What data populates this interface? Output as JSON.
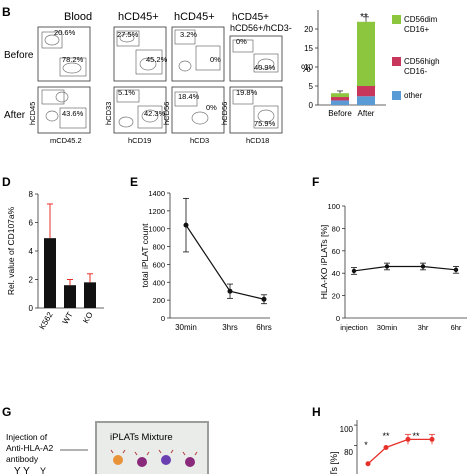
{
  "panels": {
    "B": {
      "letter": "B",
      "col_titles": [
        "Blood",
        "hCD45+",
        "hCD45+",
        "hCD45+",
        "hCD56+/hCD3-"
      ],
      "row_labels": [
        "Before",
        "After"
      ],
      "before_pcts": [
        "20.6%",
        "78.2%",
        "27.5%",
        "45.2%",
        "3.2%",
        "0%",
        "0%",
        "40.9%"
      ],
      "after_pcts": [
        "43.6%",
        "5.1%",
        "42.3%",
        "18.4%",
        "0%",
        "19.8%",
        "75.9%"
      ],
      "y_axis_labels": [
        "hCD45",
        "hCD33",
        "hCD56",
        "hCD56"
      ],
      "x_axis_labels": [
        "mCD45.2",
        "hCD19",
        "hCD3",
        "hCD18"
      ],
      "bar_ylabel": "%",
      "bar_significance": "**",
      "legend": [
        "CD56dim CD16+",
        "CD56high CD16-",
        "other"
      ]
    },
    "D": {
      "letter": "D"
    },
    "E": {
      "letter": "E"
    },
    "F": {
      "letter": "F"
    },
    "G": {
      "letter": "G",
      "text_lines": [
        "Injection of",
        "Anti-HLA-A2",
        "antibody"
      ],
      "box_label": "iPLATs Mixture"
    },
    "H": {
      "letter": "H",
      "ylabel_partial": "Ts [%]",
      "yticks": [
        "100",
        "80"
      ],
      "significance": [
        "*",
        "**",
        "**"
      ]
    }
  },
  "colors": {
    "cd56dim": "#8cc63f",
    "cd56high": "#c8365b",
    "other": "#5b9bd5",
    "h_line": "#e8302a",
    "axis": "#333333"
  },
  "chart_data": [
    {
      "panel": "B",
      "type": "bar",
      "categories": [
        "Before",
        "After"
      ],
      "ylabel": "%",
      "ylim": [
        0,
        25
      ],
      "yticks": [
        0,
        5,
        10,
        15,
        20
      ],
      "stacked": true,
      "series": [
        {
          "name": "other",
          "values": [
            1.2,
            2.3
          ]
        },
        {
          "name": "CD56high CD16-",
          "values": [
            0.9,
            2.7
          ]
        },
        {
          "name": "CD56dim CD16+",
          "values": [
            1.0,
            16.9
          ]
        }
      ],
      "errors": [
        0.6,
        1.3
      ],
      "legend_position": "right"
    },
    {
      "panel": "D",
      "type": "bar",
      "categories": [
        "K562",
        "WT",
        "KO"
      ],
      "values": [
        4.9,
        1.6,
        1.8
      ],
      "errors": [
        2.4,
        0.4,
        0.6
      ],
      "ylabel": "Rel. value of CD107a%",
      "ylim": [
        0,
        8
      ],
      "yticks": [
        0,
        2,
        4,
        6,
        8
      ]
    },
    {
      "panel": "E",
      "type": "line",
      "x": [
        "30min",
        "3hrs",
        "6hrs"
      ],
      "values": [
        1040,
        300,
        210
      ],
      "errors": [
        300,
        80,
        50
      ],
      "ylabel": "total iPLAT count",
      "ylim": [
        0,
        1400
      ],
      "yticks": [
        0,
        200,
        400,
        600,
        800,
        1000,
        1200,
        1400
      ]
    },
    {
      "panel": "F",
      "type": "line",
      "x": [
        "injection",
        "30min",
        "3hr",
        "6hr"
      ],
      "values": [
        42,
        46,
        46,
        43
      ],
      "errors": [
        3,
        3,
        3,
        3
      ],
      "ylabel": "HLA-KO iPLATs [%]",
      "ylim": [
        0,
        100
      ],
      "yticks": [
        0,
        20,
        40,
        60,
        80,
        100
      ]
    },
    {
      "panel": "H",
      "type": "line",
      "x_count": 4,
      "values": [
        62,
        78,
        86,
        86
      ],
      "ylabel": "Ts [%]",
      "ylim": [
        50,
        105
      ],
      "yticks": [
        80,
        100
      ]
    }
  ]
}
